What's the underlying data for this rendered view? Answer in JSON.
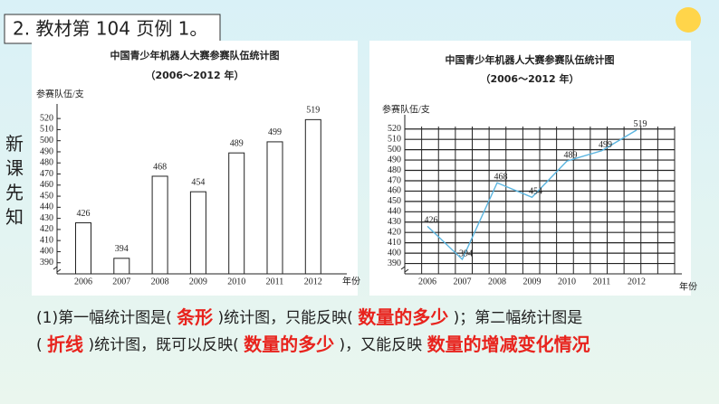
{
  "heading": "2. 教材第 104 页例 1。",
  "side_label": [
    "新",
    "课",
    "先",
    "知"
  ],
  "chart_data": [
    {
      "type": "bar",
      "title": "中国青少年机器人大赛参赛队伍统计图",
      "subtitle": "（2006～2012 年）",
      "y_label": "参赛队伍/支",
      "x_label": "年份",
      "categories": [
        "2006",
        "2007",
        "2008",
        "2009",
        "2010",
        "2011",
        "2012"
      ],
      "values": [
        426,
        394,
        468,
        454,
        489,
        499,
        519
      ],
      "color": "#ffffff",
      "ylim": [
        380,
        525
      ],
      "yticks": [
        390,
        400,
        410,
        420,
        430,
        440,
        450,
        460,
        470,
        480,
        490,
        500,
        510,
        520
      ],
      "grid": false
    },
    {
      "type": "line",
      "title": "中国青少年机器人大赛参赛队伍统计图",
      "subtitle": "（2006～2012 年）",
      "y_label": "参赛队伍/支",
      "x_label": "年份",
      "categories": [
        "2006",
        "2007",
        "2008",
        "2009",
        "2010",
        "2011",
        "2012"
      ],
      "values": [
        426,
        394,
        468,
        454,
        489,
        499,
        519
      ],
      "color": "#5bb5e0",
      "ylim": [
        380,
        525
      ],
      "yticks": [
        390,
        400,
        410,
        420,
        430,
        440,
        450,
        460,
        470,
        480,
        490,
        500,
        510,
        520
      ],
      "grid": true
    }
  ],
  "sentence": [
    [
      "(1)第一幅统计图是(",
      "条形",
      ")统计图，只能反映(",
      "数量的多少",
      ")；第二幅统计图是"
    ],
    [
      "(",
      "折线",
      ")统计图，既可以反映(",
      "数量的多少",
      ")，又能反映",
      "数量的增减变化情况"
    ]
  ]
}
